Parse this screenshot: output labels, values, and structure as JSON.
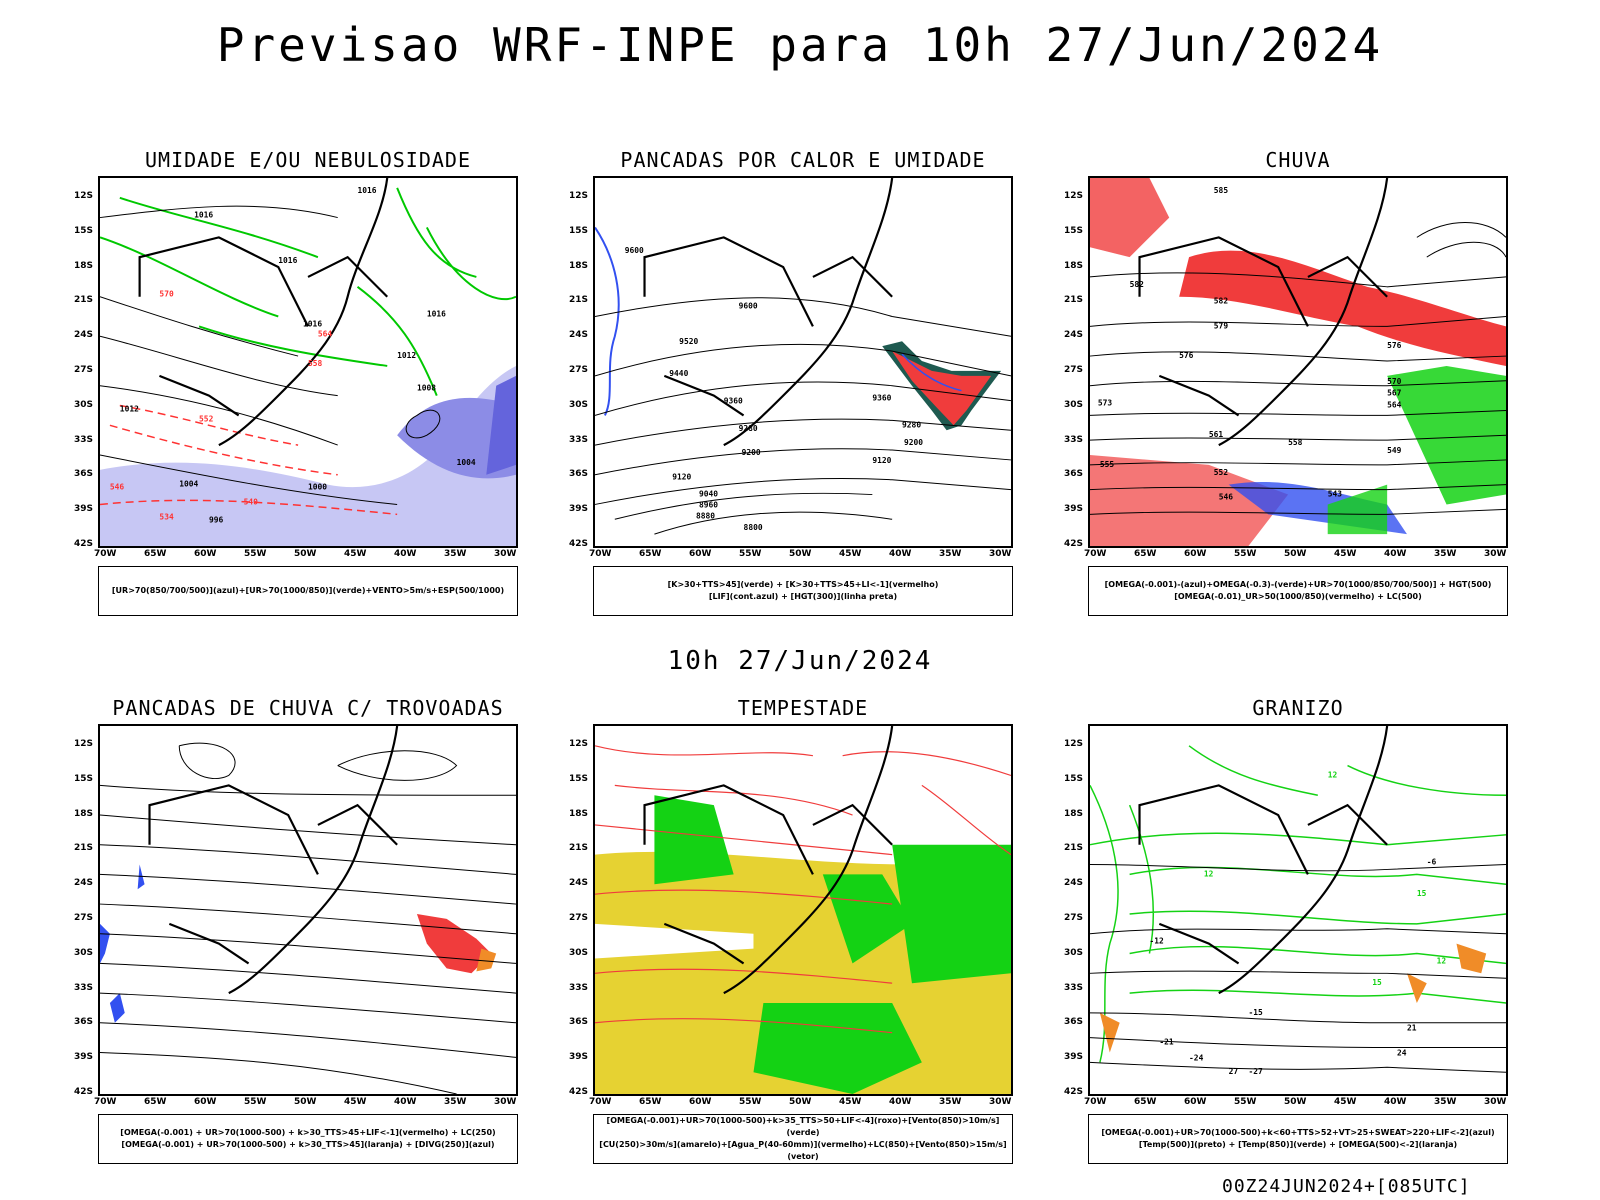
{
  "title": "Previsao WRF-INPE  para 10h 27/Jun/2024",
  "subtitle": "10h 27/Jun/2024",
  "footer": "00Z24JUN2024+[085UTC]",
  "lat_labels": [
    "12S",
    "15S",
    "18S",
    "21S",
    "24S",
    "27S",
    "30S",
    "33S",
    "36S",
    "39S",
    "42S"
  ],
  "lon_labels": [
    "70W",
    "65W",
    "60W",
    "55W",
    "50W",
    "45W",
    "40W",
    "35W",
    "30W"
  ],
  "panels": [
    {
      "title": "UMIDADE E/OU NEBULOSIDADE",
      "legend": [
        "[UR>70(850/700/500)](azul)+[UR>70(1000/850)](verde)+VENTO>5m/s+ESP(500/1000)"
      ],
      "contour_labels": [
        "1016",
        "1016",
        "1016",
        "1016",
        "1016",
        "1012",
        "1012",
        "1008",
        "1004",
        "1004",
        "1000",
        "996",
        "570",
        "564",
        "558",
        "552",
        "546",
        "540",
        "534"
      ]
    },
    {
      "title": "PANCADAS POR CALOR E UMIDADE",
      "legend": [
        "[K>30+TTS>45](verde) + [K>30+TTS>45+LI<-1](vermelho)",
        "[LIF](cont.azul) + [HGT(300)](linha preta)"
      ],
      "contour_labels": [
        "9600",
        "9600",
        "9520",
        "9440",
        "9360",
        "9360",
        "9280",
        "9280",
        "9200",
        "9120",
        "9120",
        "9040",
        "8960",
        "8880",
        "8800",
        "9200"
      ]
    },
    {
      "title": "CHUVA",
      "legend": [
        "[OMEGA(-0.001)-(azul)+OMEGA(-0.3)-(verde)+UR>70(1000/850/700/500)] + HGT(500)",
        "[OMEGA(-0.01)_UR>50(1000/850)(vermelho) + LC(500)"
      ],
      "contour_labels": [
        "585",
        "582",
        "582",
        "579",
        "576",
        "576",
        "573",
        "570",
        "567",
        "564",
        "561",
        "558",
        "555",
        "552",
        "549",
        "546",
        "543"
      ]
    },
    {
      "title": "PANCADAS DE CHUVA C/ TROVOADAS",
      "legend": [
        "[OMEGA(-0.001) + UR>70(1000-500) + k>30_TTS>45+LIF<-1](vermelho) + LC(250)",
        "[OMEGA(-0.001) + UR>70(1000-500) + k>30_TTS>45](laranja) + [DIVG(250)](azul)"
      ]
    },
    {
      "title": "TEMPESTADE",
      "legend": [
        "[OMEGA(-0.001)+UR>70(1000-500)+k>35_TTS>50+LIF<-4](roxo)+[Vento(850)>10m/s](verde)",
        "[CU(250)>30m/s](amarelo)+[Agua_P(40-60mm)](vermelho)+LC(850)+[Vento(850)>15m/s](vetor)"
      ]
    },
    {
      "title": "GRANIZO",
      "legend": [
        "[OMEGA(-0.001)+UR>70(1000-500)+k<60+TTS>52+VT>25+SWEAT>220+LIF<-2](azul)",
        "[Temp(500)](preto) + [Temp(850)](verde) + [OMEGA(500)<-2](laranja)"
      ],
      "contour_labels": [
        "12",
        "12",
        "15",
        "12",
        "15",
        "21",
        "24",
        "27",
        "-21",
        "-24",
        "-27",
        "-12",
        "-15",
        "-6"
      ]
    }
  ],
  "colors": {
    "rh_high": "#b4b4f0",
    "rh_low_level": "#00c800",
    "thickness": "#ff3232",
    "red_fill": "#f03c3c",
    "dark_teal": "#1e5a50",
    "blue": "#3250f0",
    "yellow": "#e6d232",
    "green": "#14d214",
    "orange": "#f08c28"
  }
}
